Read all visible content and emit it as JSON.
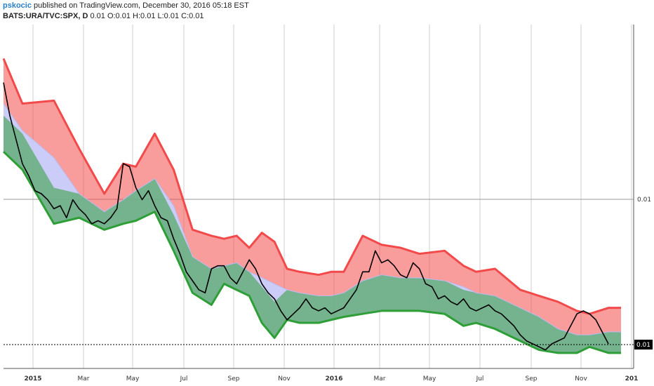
{
  "header": {
    "author": "pskocic",
    "published_text": "published on TradingView.com, December 30, 2016 05:18 EST",
    "symbol": "BATS:URA/TVC:SPX, D",
    "ohlc": "0.01 O:0.01 H:0.01 L:0.01 C:0.01"
  },
  "colors": {
    "upper_band": "#f24a4a",
    "middle_band": "#6a6ef0",
    "lower_band": "#2e9e36",
    "price": "#000000",
    "grid": "#cfcfcf"
  },
  "chart_data": {
    "type": "line",
    "title": "",
    "xlabel": "",
    "ylabel": "",
    "x_ticks": [
      "2015",
      "Mar",
      "May",
      "Jul",
      "Sep",
      "Nov",
      "2016",
      "Mar",
      "May",
      "Jul",
      "Sep",
      "Nov",
      "201"
    ],
    "y_ticks": [
      "0.01",
      "0.01"
    ],
    "last_value_label": "0.01",
    "x_range": [
      0,
      100
    ],
    "y_range": [
      0,
      100
    ],
    "grid": true,
    "series": [
      {
        "role": "upper",
        "x": [
          0,
          3,
          8,
          12,
          16,
          19,
          21,
          24,
          27,
          30,
          33,
          35,
          37,
          39,
          41,
          43,
          45,
          47,
          50,
          52,
          54,
          57,
          60,
          63,
          66,
          70,
          73,
          75,
          78,
          82,
          85,
          88,
          91,
          93,
          96,
          98
        ],
        "values": [
          95,
          80,
          81,
          65,
          50,
          60,
          59,
          70,
          58,
          38,
          36,
          35,
          36,
          32,
          37,
          34,
          25,
          24,
          23,
          24,
          24,
          36,
          33,
          32,
          30,
          31,
          26,
          24,
          25,
          18,
          16,
          14,
          11,
          10,
          12,
          12
        ]
      },
      {
        "role": "middle",
        "x": [
          0,
          3,
          8,
          12,
          16,
          19,
          21,
          24,
          27,
          30,
          33,
          35,
          37,
          39,
          41,
          43,
          45,
          47,
          50,
          52,
          54,
          57,
          60,
          63,
          66,
          70,
          73,
          75,
          78,
          82,
          85,
          88,
          91,
          93,
          96,
          98
        ],
        "values": [
          80,
          71,
          62,
          50,
          44,
          48,
          51,
          55,
          46,
          29,
          25,
          26,
          27,
          24,
          22,
          20,
          18,
          17,
          16,
          16,
          17,
          21,
          23,
          22,
          22,
          21,
          19,
          17,
          16,
          12,
          9,
          5,
          3,
          3,
          4,
          4
        ]
      },
      {
        "role": "lower",
        "x": [
          0,
          3,
          8,
          12,
          16,
          19,
          21,
          24,
          27,
          30,
          33,
          35,
          37,
          39,
          41,
          43,
          45,
          47,
          50,
          52,
          54,
          57,
          60,
          63,
          66,
          70,
          73,
          75,
          78,
          82,
          85,
          88,
          91,
          93,
          96,
          98
        ],
        "values": [
          64,
          58,
          40,
          42,
          38,
          40,
          41,
          44,
          31,
          17,
          13,
          20,
          18,
          16,
          7,
          2,
          8,
          7,
          7,
          8,
          9,
          10,
          11,
          11,
          11,
          10,
          6,
          7,
          5,
          1,
          -2,
          -3,
          -3,
          -1,
          -3,
          -3
        ]
      },
      {
        "role": "price",
        "x": [
          0,
          1,
          2,
          3,
          4,
          5,
          6,
          7,
          8,
          9,
          10,
          11,
          12,
          13,
          14,
          15,
          16,
          17,
          18,
          19,
          20,
          21,
          22,
          23,
          24,
          25,
          26,
          27,
          28,
          29,
          30,
          31,
          32,
          33,
          34,
          35,
          36,
          37,
          38,
          39,
          40,
          41,
          42,
          43,
          44,
          45,
          46,
          47,
          48,
          49,
          50,
          51,
          52,
          53,
          54,
          55,
          56,
          57,
          58,
          59,
          60,
          61,
          62,
          63,
          64,
          65,
          66,
          67,
          68,
          69,
          70,
          71,
          72,
          73,
          74,
          75,
          76,
          77,
          78,
          79,
          80,
          81,
          82,
          83,
          84,
          85,
          86,
          87,
          88,
          89,
          90,
          91,
          92,
          93,
          94,
          95,
          96
        ],
        "values": [
          87,
          76,
          68,
          60,
          56,
          51,
          50,
          48,
          45,
          46,
          42,
          48,
          45,
          43,
          40,
          41,
          40,
          42,
          45,
          60,
          59,
          52,
          48,
          51,
          46,
          42,
          41,
          35,
          30,
          24,
          21,
          18,
          17,
          25,
          26,
          26,
          22,
          20,
          24,
          28,
          25,
          20,
          17,
          15,
          11,
          8,
          10,
          12,
          15,
          12,
          11,
          12,
          10,
          11,
          12,
          15,
          18,
          24,
          24,
          31,
          27,
          28,
          26,
          23,
          22,
          27,
          25,
          20,
          19,
          15,
          16,
          14,
          13,
          15,
          12,
          11,
          12,
          13,
          11,
          10,
          8,
          6,
          3,
          1,
          0,
          -1,
          -2,
          0,
          1,
          2,
          6,
          10,
          11,
          10,
          8,
          4,
          0
        ]
      }
    ]
  }
}
